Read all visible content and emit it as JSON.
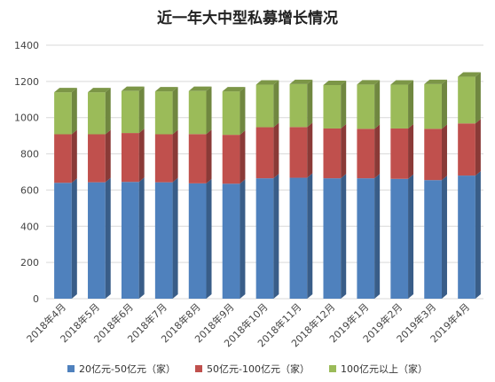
{
  "chart_data": {
    "type": "bar",
    "stacked": true,
    "three_d": true,
    "title": "近一年大中型私募增长情况",
    "xlabel": "",
    "ylabel": "",
    "ylim": [
      0,
      1400
    ],
    "yticks": [
      0,
      200,
      400,
      600,
      800,
      1000,
      1200,
      1400
    ],
    "ytick_labels": [
      "0",
      "200",
      "400",
      "600",
      "800",
      "1000",
      "1200",
      "1400"
    ],
    "grid": true,
    "legend_position": "bottom",
    "categories": [
      "2018年4月",
      "2018年5月",
      "2018年6月",
      "2018年7月",
      "2018年8月",
      "2018年9月",
      "2018年10月",
      "2018年11月",
      "2018年12月",
      "2019年1月",
      "2019年2月",
      "2019年3月",
      "2019年4月"
    ],
    "series": [
      {
        "name": "20亿元-50亿元（家）",
        "color": "#4f81bd",
        "values": [
          640,
          643,
          645,
          643,
          637,
          635,
          665,
          668,
          665,
          665,
          662,
          655,
          680
        ]
      },
      {
        "name": "50亿元-100亿元（家）",
        "color": "#c0504d",
        "values": [
          268,
          265,
          270,
          265,
          272,
          270,
          282,
          280,
          275,
          273,
          278,
          283,
          288
        ]
      },
      {
        "name": "100亿元以上（家）",
        "color": "#9bbb59",
        "values": [
          232,
          232,
          232,
          237,
          238,
          240,
          235,
          237,
          240,
          245,
          242,
          247,
          258
        ]
      }
    ]
  }
}
